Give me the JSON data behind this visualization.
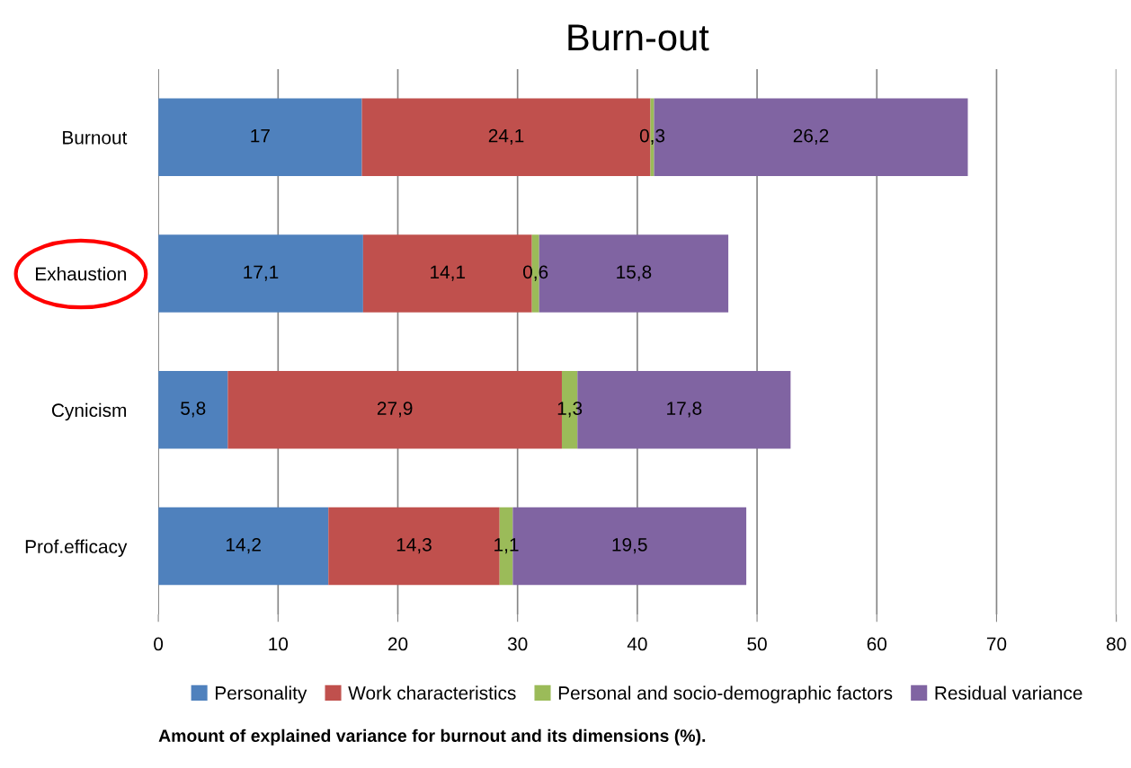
{
  "chart_data": {
    "type": "bar",
    "orientation": "horizontal",
    "stacked": true,
    "title": "Burn-out",
    "categories": [
      "Burnout",
      "Exhaustion",
      "Cynicism",
      "Prof.efficacy"
    ],
    "series": [
      {
        "name": "Personality",
        "color": "#4f81bd",
        "values": [
          17,
          17.1,
          5.8,
          14.2
        ],
        "value_labels": [
          "17",
          "17,1",
          "5,8",
          "14,2"
        ]
      },
      {
        "name": "Work characteristics",
        "color": "#c0504d",
        "values": [
          24.1,
          14.1,
          27.9,
          14.3
        ],
        "value_labels": [
          "24,1",
          "14,1",
          "27,9",
          "14,3"
        ]
      },
      {
        "name": "Personal and socio-demographic factors",
        "color": "#9bbb59",
        "values": [
          0.3,
          0.6,
          1.3,
          1.1
        ],
        "value_labels": [
          "0,3",
          "0,6",
          "1,3",
          "1,1"
        ]
      },
      {
        "name": "Residual variance",
        "color": "#8064a2",
        "values": [
          26.2,
          15.8,
          17.8,
          19.5
        ],
        "value_labels": [
          "26,2",
          "15,8",
          "17,8",
          "19,5"
        ]
      }
    ],
    "xlim": [
      0,
      80
    ],
    "xticks": [
      0,
      10,
      20,
      30,
      40,
      50,
      60,
      70,
      80
    ],
    "grid": "x",
    "legend": "bottom",
    "annotations": [
      "Amount of explained variance for burnout and its dimensions (%)."
    ]
  }
}
